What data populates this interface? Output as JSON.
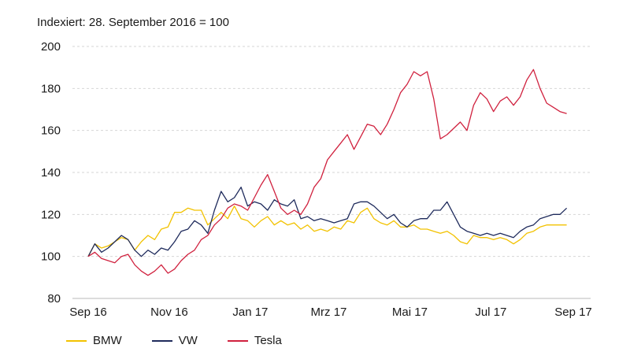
{
  "chart_data": {
    "type": "line",
    "subtitle": "Indexiert: 28. September 2016 = 100",
    "x_start": "2016-09-28",
    "x_end": "2017-09-28",
    "ylim": [
      80,
      200
    ],
    "yticks": [
      80,
      100,
      120,
      140,
      160,
      180,
      200
    ],
    "xticks": [
      {
        "label": "Sep 16",
        "date": "2016-09-28"
      },
      {
        "label": "Nov 16",
        "date": "2016-11-28"
      },
      {
        "label": "Jan 17",
        "date": "2017-01-28"
      },
      {
        "label": "Mrz 17",
        "date": "2017-03-28"
      },
      {
        "label": "Mai 17",
        "date": "2017-05-28"
      },
      {
        "label": "Jul 17",
        "date": "2017-07-28"
      },
      {
        "label": "Sep 17",
        "date": "2017-09-28"
      }
    ],
    "grid": "horizontal dashed",
    "legend_position": "bottom-left",
    "series": [
      {
        "name": "BMW",
        "color": "#f2c200",
        "points": [
          [
            "2016-09-28",
            100
          ],
          [
            "2016-10-03",
            106
          ],
          [
            "2016-10-08",
            104
          ],
          [
            "2016-10-13",
            105
          ],
          [
            "2016-10-18",
            107
          ],
          [
            "2016-10-23",
            109
          ],
          [
            "2016-10-28",
            108
          ],
          [
            "2016-11-02",
            103
          ],
          [
            "2016-11-07",
            107
          ],
          [
            "2016-11-12",
            110
          ],
          [
            "2016-11-17",
            108
          ],
          [
            "2016-11-22",
            113
          ],
          [
            "2016-11-27",
            114
          ],
          [
            "2016-12-02",
            121
          ],
          [
            "2016-12-07",
            121
          ],
          [
            "2016-12-12",
            123
          ],
          [
            "2016-12-17",
            122
          ],
          [
            "2016-12-22",
            122
          ],
          [
            "2016-12-27",
            115
          ],
          [
            "2017-01-01",
            118
          ],
          [
            "2017-01-06",
            121
          ],
          [
            "2017-01-11",
            118
          ],
          [
            "2017-01-16",
            124
          ],
          [
            "2017-01-21",
            118
          ],
          [
            "2017-01-26",
            117
          ],
          [
            "2017-01-31",
            114
          ],
          [
            "2017-02-05",
            117
          ],
          [
            "2017-02-10",
            119
          ],
          [
            "2017-02-15",
            115
          ],
          [
            "2017-02-20",
            117
          ],
          [
            "2017-02-25",
            115
          ],
          [
            "2017-03-02",
            116
          ],
          [
            "2017-03-07",
            113
          ],
          [
            "2017-03-12",
            115
          ],
          [
            "2017-03-17",
            112
          ],
          [
            "2017-03-22",
            113
          ],
          [
            "2017-03-27",
            112
          ],
          [
            "2017-04-01",
            114
          ],
          [
            "2017-04-06",
            113
          ],
          [
            "2017-04-11",
            117
          ],
          [
            "2017-04-16",
            116
          ],
          [
            "2017-04-21",
            121
          ],
          [
            "2017-04-26",
            123
          ],
          [
            "2017-05-01",
            118
          ],
          [
            "2017-05-06",
            116
          ],
          [
            "2017-05-11",
            115
          ],
          [
            "2017-05-16",
            117
          ],
          [
            "2017-05-21",
            114
          ],
          [
            "2017-05-26",
            114
          ],
          [
            "2017-05-31",
            115
          ],
          [
            "2017-06-05",
            113
          ],
          [
            "2017-06-10",
            113
          ],
          [
            "2017-06-15",
            112
          ],
          [
            "2017-06-20",
            111
          ],
          [
            "2017-06-25",
            112
          ],
          [
            "2017-06-30",
            110
          ],
          [
            "2017-07-05",
            107
          ],
          [
            "2017-07-10",
            106
          ],
          [
            "2017-07-15",
            110
          ],
          [
            "2017-07-20",
            109
          ],
          [
            "2017-07-25",
            109
          ],
          [
            "2017-07-30",
            108
          ],
          [
            "2017-08-04",
            109
          ],
          [
            "2017-08-09",
            108
          ],
          [
            "2017-08-14",
            106
          ],
          [
            "2017-08-19",
            108
          ],
          [
            "2017-08-24",
            111
          ],
          [
            "2017-08-29",
            112
          ],
          [
            "2017-09-03",
            114
          ],
          [
            "2017-09-08",
            115
          ],
          [
            "2017-09-13",
            115
          ],
          [
            "2017-09-18",
            115
          ],
          [
            "2017-09-23",
            115
          ]
        ]
      },
      {
        "name": "VW",
        "color": "#1f2b5c",
        "points": [
          [
            "2016-09-28",
            100
          ],
          [
            "2016-10-03",
            106
          ],
          [
            "2016-10-08",
            102
          ],
          [
            "2016-10-13",
            104
          ],
          [
            "2016-10-18",
            107
          ],
          [
            "2016-10-23",
            110
          ],
          [
            "2016-10-28",
            108
          ],
          [
            "2016-11-02",
            103
          ],
          [
            "2016-11-07",
            100
          ],
          [
            "2016-11-12",
            103
          ],
          [
            "2016-11-17",
            101
          ],
          [
            "2016-11-22",
            104
          ],
          [
            "2016-11-27",
            103
          ],
          [
            "2016-12-02",
            107
          ],
          [
            "2016-12-07",
            112
          ],
          [
            "2016-12-12",
            113
          ],
          [
            "2016-12-17",
            117
          ],
          [
            "2016-12-22",
            115
          ],
          [
            "2016-12-27",
            111
          ],
          [
            "2017-01-01",
            122
          ],
          [
            "2017-01-06",
            131
          ],
          [
            "2017-01-11",
            126
          ],
          [
            "2017-01-16",
            128
          ],
          [
            "2017-01-21",
            133
          ],
          [
            "2017-01-26",
            124
          ],
          [
            "2017-01-31",
            126
          ],
          [
            "2017-02-05",
            125
          ],
          [
            "2017-02-10",
            122
          ],
          [
            "2017-02-15",
            127
          ],
          [
            "2017-02-20",
            125
          ],
          [
            "2017-02-25",
            124
          ],
          [
            "2017-03-02",
            127
          ],
          [
            "2017-03-07",
            118
          ],
          [
            "2017-03-12",
            119
          ],
          [
            "2017-03-17",
            117
          ],
          [
            "2017-03-22",
            118
          ],
          [
            "2017-03-27",
            117
          ],
          [
            "2017-04-01",
            116
          ],
          [
            "2017-04-06",
            117
          ],
          [
            "2017-04-11",
            118
          ],
          [
            "2017-04-16",
            125
          ],
          [
            "2017-04-21",
            126
          ],
          [
            "2017-04-26",
            126
          ],
          [
            "2017-05-01",
            124
          ],
          [
            "2017-05-06",
            121
          ],
          [
            "2017-05-11",
            118
          ],
          [
            "2017-05-16",
            120
          ],
          [
            "2017-05-21",
            116
          ],
          [
            "2017-05-26",
            114
          ],
          [
            "2017-05-31",
            117
          ],
          [
            "2017-06-05",
            118
          ],
          [
            "2017-06-10",
            118
          ],
          [
            "2017-06-15",
            122
          ],
          [
            "2017-06-20",
            122
          ],
          [
            "2017-06-25",
            126
          ],
          [
            "2017-06-30",
            120
          ],
          [
            "2017-07-05",
            114
          ],
          [
            "2017-07-10",
            112
          ],
          [
            "2017-07-15",
            111
          ],
          [
            "2017-07-20",
            110
          ],
          [
            "2017-07-25",
            111
          ],
          [
            "2017-07-30",
            110
          ],
          [
            "2017-08-04",
            111
          ],
          [
            "2017-08-09",
            110
          ],
          [
            "2017-08-14",
            109
          ],
          [
            "2017-08-19",
            112
          ],
          [
            "2017-08-24",
            114
          ],
          [
            "2017-08-29",
            115
          ],
          [
            "2017-09-03",
            118
          ],
          [
            "2017-09-08",
            119
          ],
          [
            "2017-09-13",
            120
          ],
          [
            "2017-09-18",
            120
          ],
          [
            "2017-09-23",
            123
          ]
        ]
      },
      {
        "name": "Tesla",
        "color": "#d0213e",
        "points": [
          [
            "2016-09-28",
            100
          ],
          [
            "2016-10-03",
            102
          ],
          [
            "2016-10-08",
            99
          ],
          [
            "2016-10-13",
            98
          ],
          [
            "2016-10-18",
            97
          ],
          [
            "2016-10-23",
            100
          ],
          [
            "2016-10-28",
            101
          ],
          [
            "2016-11-02",
            96
          ],
          [
            "2016-11-07",
            93
          ],
          [
            "2016-11-12",
            91
          ],
          [
            "2016-11-17",
            93
          ],
          [
            "2016-11-22",
            96
          ],
          [
            "2016-11-27",
            92
          ],
          [
            "2016-12-02",
            94
          ],
          [
            "2016-12-07",
            98
          ],
          [
            "2016-12-12",
            101
          ],
          [
            "2016-12-17",
            103
          ],
          [
            "2016-12-22",
            108
          ],
          [
            "2016-12-27",
            110
          ],
          [
            "2017-01-01",
            115
          ],
          [
            "2017-01-06",
            118
          ],
          [
            "2017-01-11",
            123
          ],
          [
            "2017-01-16",
            125
          ],
          [
            "2017-01-21",
            124
          ],
          [
            "2017-01-26",
            122
          ],
          [
            "2017-01-31",
            128
          ],
          [
            "2017-02-05",
            134
          ],
          [
            "2017-02-10",
            139
          ],
          [
            "2017-02-15",
            131
          ],
          [
            "2017-02-20",
            123
          ],
          [
            "2017-02-25",
            120
          ],
          [
            "2017-03-02",
            122
          ],
          [
            "2017-03-07",
            120
          ],
          [
            "2017-03-12",
            125
          ],
          [
            "2017-03-17",
            133
          ],
          [
            "2017-03-22",
            137
          ],
          [
            "2017-03-27",
            146
          ],
          [
            "2017-04-01",
            150
          ],
          [
            "2017-04-06",
            154
          ],
          [
            "2017-04-11",
            158
          ],
          [
            "2017-04-16",
            151
          ],
          [
            "2017-04-21",
            157
          ],
          [
            "2017-04-26",
            163
          ],
          [
            "2017-05-01",
            162
          ],
          [
            "2017-05-06",
            158
          ],
          [
            "2017-05-11",
            163
          ],
          [
            "2017-05-16",
            170
          ],
          [
            "2017-05-21",
            178
          ],
          [
            "2017-05-26",
            182
          ],
          [
            "2017-05-31",
            188
          ],
          [
            "2017-06-05",
            186
          ],
          [
            "2017-06-10",
            188
          ],
          [
            "2017-06-15",
            175
          ],
          [
            "2017-06-20",
            156
          ],
          [
            "2017-06-25",
            158
          ],
          [
            "2017-06-30",
            161
          ],
          [
            "2017-07-05",
            164
          ],
          [
            "2017-07-10",
            160
          ],
          [
            "2017-07-15",
            172
          ],
          [
            "2017-07-20",
            178
          ],
          [
            "2017-07-25",
            175
          ],
          [
            "2017-07-30",
            169
          ],
          [
            "2017-08-04",
            174
          ],
          [
            "2017-08-09",
            176
          ],
          [
            "2017-08-14",
            172
          ],
          [
            "2017-08-19",
            176
          ],
          [
            "2017-08-24",
            184
          ],
          [
            "2017-08-29",
            189
          ],
          [
            "2017-09-03",
            180
          ],
          [
            "2017-09-08",
            173
          ],
          [
            "2017-09-13",
            171
          ],
          [
            "2017-09-18",
            169
          ],
          [
            "2017-09-23",
            168
          ]
        ]
      }
    ]
  }
}
